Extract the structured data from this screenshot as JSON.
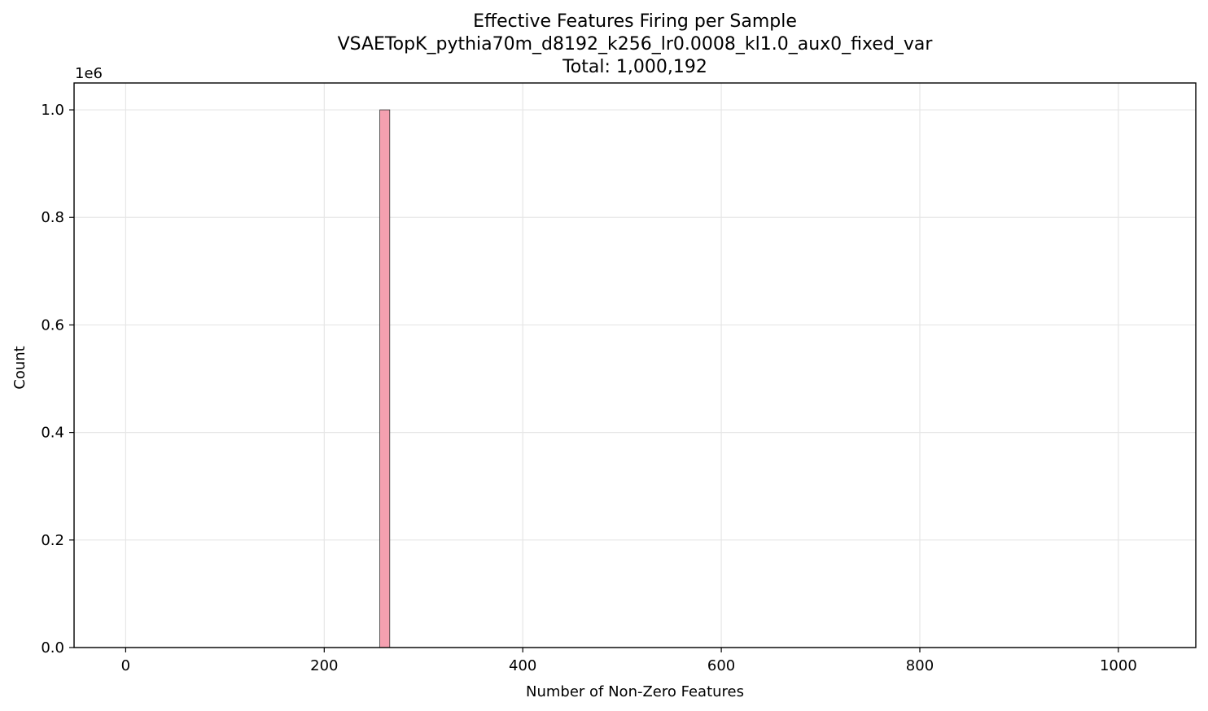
{
  "chart_data": {
    "type": "bar",
    "title_lines": [
      "Effective Features Firing per Sample",
      "VSAETopK_pythia70m_d8192_k256_lr0.0008_kl1.0_aux0_fixed_var",
      "Total: 1,000,192"
    ],
    "xlabel": "Number of Non-Zero Features",
    "ylabel": "Count",
    "y_offset_label": "1e6",
    "xlim": [
      -52,
      1078
    ],
    "ylim": [
      0,
      1.05
    ],
    "x_ticks": [
      0,
      200,
      400,
      600,
      800,
      1000
    ],
    "x_tick_labels": [
      "0",
      "200",
      "400",
      "600",
      "800",
      "1000"
    ],
    "y_ticks": [
      0,
      0.2,
      0.4,
      0.6,
      0.8,
      1.0
    ],
    "y_tick_labels": [
      "0.0",
      "0.2",
      "0.4",
      "0.6",
      "0.8",
      "1.0"
    ],
    "grid": true,
    "bars": [
      {
        "x_start": 256,
        "x_end": 266,
        "value": 1.0
      }
    ],
    "colors": {
      "bar_fill": "#f4a0b0",
      "bar_edge": "#333333"
    }
  }
}
